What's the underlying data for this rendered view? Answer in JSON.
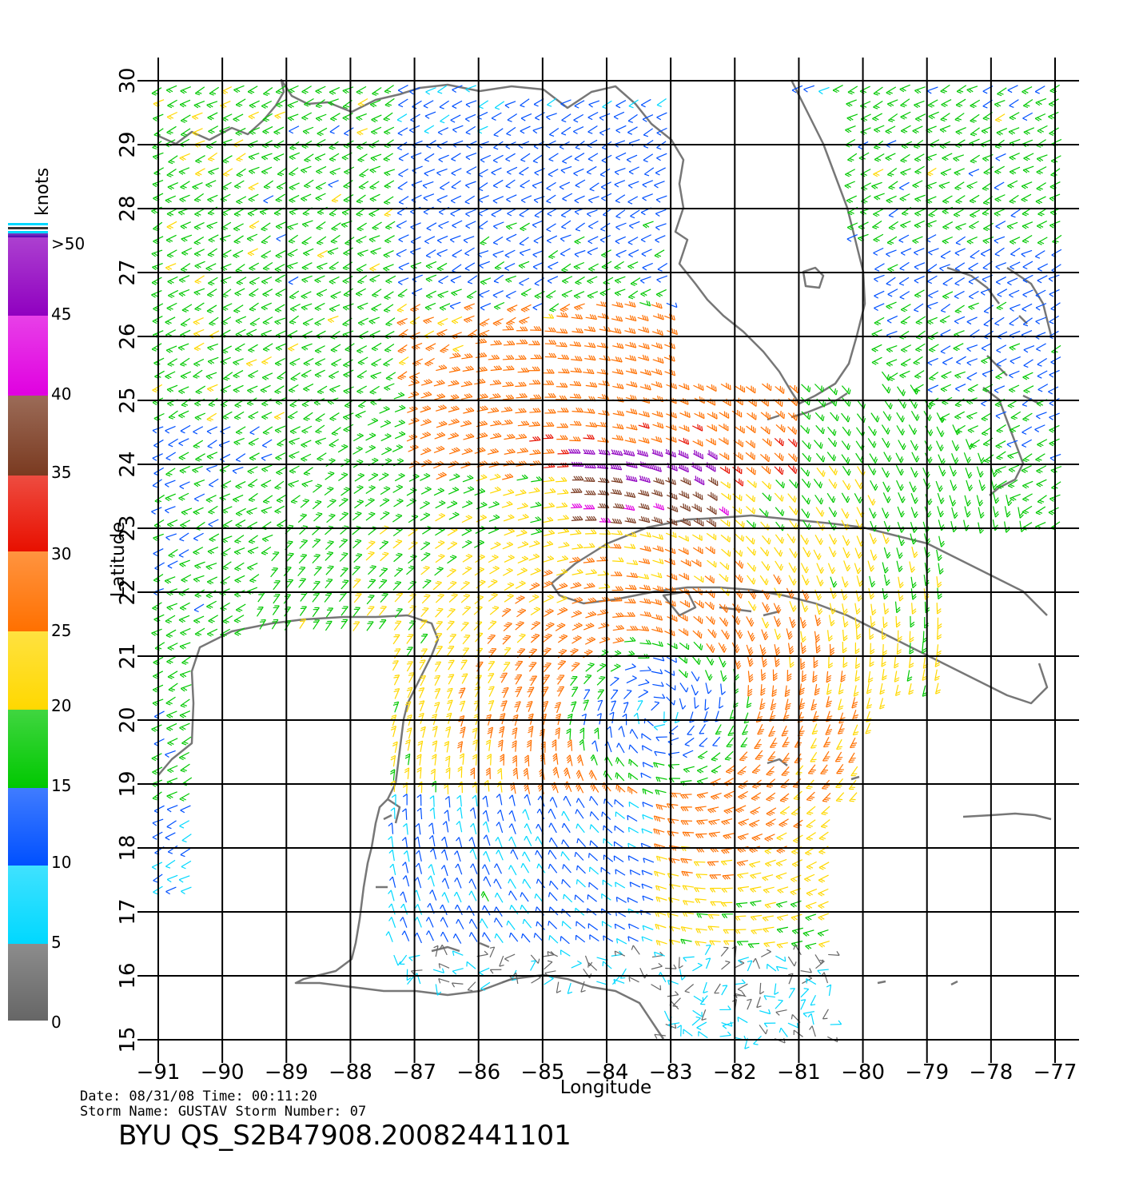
{
  "map": {
    "ylabel": "Latitude",
    "xlabel": "Longitude",
    "x_ticks": [
      "−91",
      "−90",
      "−89",
      "−88",
      "−87",
      "−86",
      "−85",
      "−84",
      "−83",
      "−82",
      "−81",
      "−80",
      "−79",
      "−78",
      "−77"
    ],
    "y_ticks": [
      "15",
      "16",
      "17",
      "18",
      "19",
      "20",
      "21",
      "22",
      "23",
      "24",
      "25",
      "26",
      "27",
      "28",
      "29",
      "30"
    ],
    "lon_range": [
      -91,
      -77
    ],
    "lat_range": [
      15,
      30
    ],
    "storm_center": {
      "lon": -83.2,
      "lat": 20.1
    }
  },
  "legend": {
    "title": "knots",
    "labels": [
      ">50",
      "45",
      "40",
      "35",
      "30",
      "25",
      "20",
      "15",
      "10",
      "5",
      "0"
    ],
    "colors": {
      "lt5": "#666666",
      "b5_10": "#00d8ff",
      "b10_15": "#0050ff",
      "b15_20": "#00c800",
      "b20_25": "#ffd800",
      "b25_30": "#ff7000",
      "b30_35": "#e81000",
      "b35_40": "#7a3a20",
      "b40_45": "#e000e0",
      "b45_50": "#9000c0",
      "gt50": "#5000b0"
    }
  },
  "footer": {
    "date_line": "Date: 08/31/08   Time: 00:11:20",
    "storm_line": "Storm  Name: GUSTAV   Storm  Number: 07",
    "product": "BYU  QS_S2B47908.20082441101"
  }
}
